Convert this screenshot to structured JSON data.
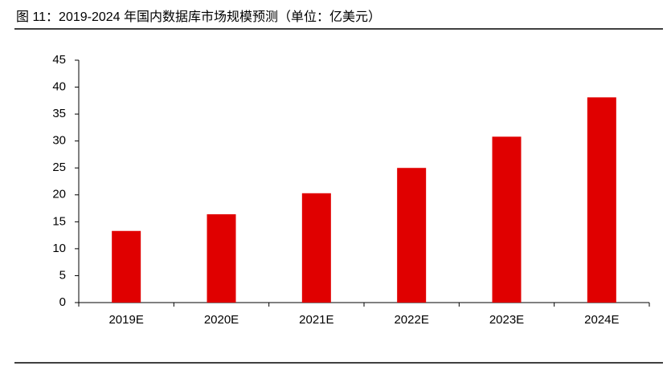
{
  "chart_data": {
    "type": "bar",
    "title": "图 11：2019-2024 年国内数据库市场规模预测（单位：亿美元）",
    "categories": [
      "2019E",
      "2020E",
      "2021E",
      "2022E",
      "2023E",
      "2024E"
    ],
    "values": [
      13.3,
      16.4,
      20.3,
      25.0,
      30.8,
      38.1
    ],
    "color": "#e00000",
    "ylim": [
      0,
      45
    ],
    "yticks": [
      0,
      5,
      10,
      15,
      20,
      25,
      30,
      35,
      40,
      45
    ],
    "grid": false
  }
}
